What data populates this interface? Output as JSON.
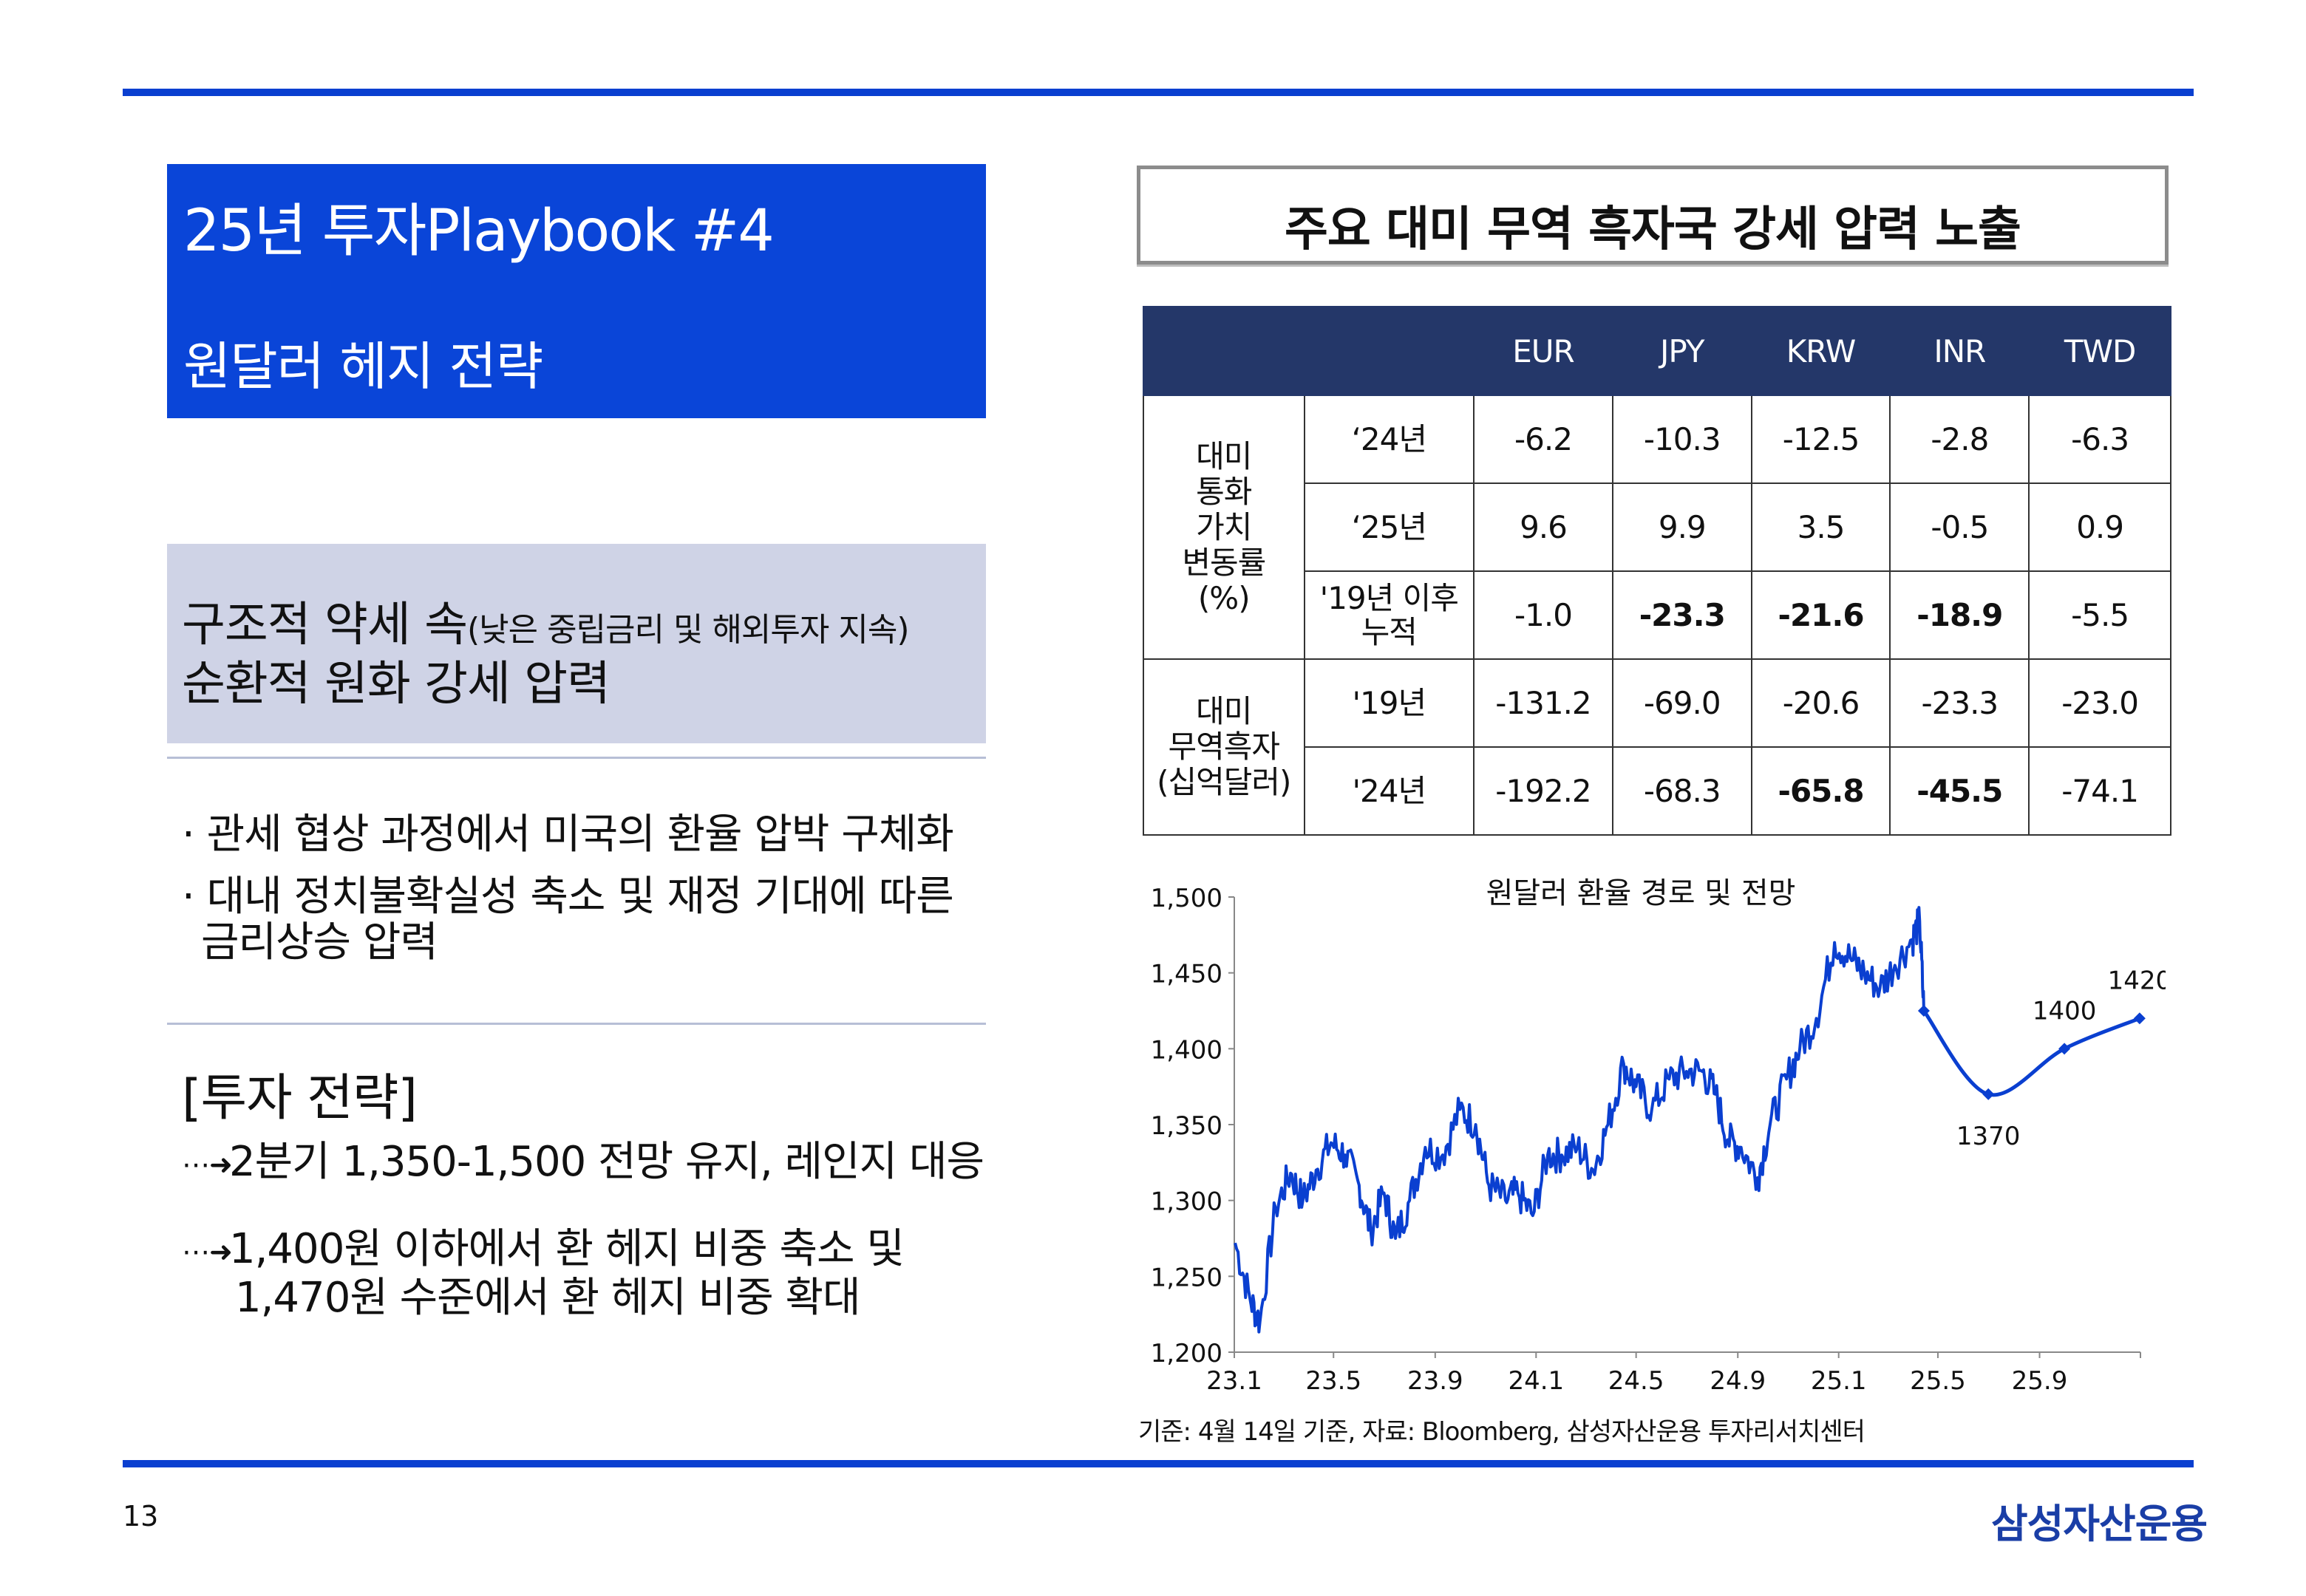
{
  "title": {
    "line1": "25년 투자Playbook #4",
    "line2": "원달러 헤지 전략"
  },
  "theme": {
    "line1_main": "구조적 약세 속",
    "line1_sub": "(낮은 중립금리 및 해외투자 지속)",
    "line2": "순환적 원화 강세 압력"
  },
  "bullets": [
    "· 관세 협상 과정에서 미국의 환율 압박 구체화",
    "· 대내 정치불확실성 축소 및 재정 기대에 따른",
    "금리상승 압력"
  ],
  "strategy": {
    "title": "[투자 전략]",
    "arrow": "⋯➜",
    "items": [
      "2분기 1,350-1,500 전망 유지, 레인지 대응",
      "1,400원 이하에서 환 헤지 비중 축소 및",
      "1,470원 수준에서 환 헤지 비중 확대"
    ]
  },
  "panel_title": "주요 대미 무역 흑자국 강세 압력 노출",
  "table": {
    "columns": [
      "EUR",
      "JPY",
      "KRW",
      "INR",
      "TWD"
    ],
    "group1": "대미\n통화\n가치\n변동률\n(%)",
    "group2": "대미\n무역흑자\n(십억달러)",
    "rows": [
      {
        "label": "‘24년",
        "values": [
          "-6.2",
          "-10.3",
          "-12.5",
          "-2.8",
          "-6.3"
        ]
      },
      {
        "label": "‘25년",
        "values": [
          "9.6",
          "9.9",
          "3.5",
          "-0.5",
          "0.9"
        ]
      },
      {
        "label": "'19년 이후\n누적",
        "values": [
          "-1.0",
          "-23.3",
          "-21.6",
          "-18.9",
          "-5.5"
        ]
      },
      {
        "label": "'19년",
        "values": [
          "-131.2",
          "-69.0",
          "-20.6",
          "-23.3",
          "-23.0"
        ]
      },
      {
        "label": "'24년",
        "values": [
          "-192.2",
          "-68.3",
          "-65.8",
          "-45.5",
          "-74.1"
        ]
      }
    ]
  },
  "chart_data": {
    "type": "line",
    "title": "원달러 환율 경로 및 전망",
    "x_ticks": [
      "23.1",
      "23.5",
      "23.9",
      "24.1",
      "24.5",
      "24.9",
      "25.1",
      "25.5",
      "25.9"
    ],
    "y_ticks": [
      "1,200",
      "1,250",
      "1,300",
      "1,350",
      "1,400",
      "1,450",
      "1,500"
    ],
    "ylim": [
      1200,
      1500
    ],
    "series": [
      {
        "values": [
          [
            "2023-01-02",
            1272
          ],
          [
            "2023-01-20",
            1235
          ],
          [
            "2023-02-01",
            1220
          ],
          [
            "2023-02-20",
            1295
          ],
          [
            "2023-03-10",
            1318
          ],
          [
            "2023-03-25",
            1300
          ],
          [
            "2023-04-10",
            1320
          ],
          [
            "2023-04-28",
            1338
          ],
          [
            "2023-05-15",
            1330
          ],
          [
            "2023-06-01",
            1310
          ],
          [
            "2023-06-15",
            1280
          ],
          [
            "2023-07-01",
            1305
          ],
          [
            "2023-07-15",
            1275
          ],
          [
            "2023-08-01",
            1300
          ],
          [
            "2023-08-20",
            1335
          ],
          [
            "2023-09-10",
            1330
          ],
          [
            "2023-10-01",
            1360
          ],
          [
            "2023-10-20",
            1350
          ],
          [
            "2023-11-05",
            1310
          ],
          [
            "2023-11-25",
            1300
          ],
          [
            "2023-12-10",
            1305
          ],
          [
            "2023-12-28",
            1290
          ],
          [
            "2024-01-15",
            1330
          ],
          [
            "2024-02-01",
            1330
          ],
          [
            "2024-02-20",
            1335
          ],
          [
            "2024-03-10",
            1320
          ],
          [
            "2024-03-28",
            1350
          ],
          [
            "2024-04-16",
            1390
          ],
          [
            "2024-05-01",
            1375
          ],
          [
            "2024-05-20",
            1360
          ],
          [
            "2024-06-10",
            1380
          ],
          [
            "2024-07-01",
            1385
          ],
          [
            "2024-07-20",
            1385
          ],
          [
            "2024-08-05",
            1370
          ],
          [
            "2024-08-20",
            1340
          ],
          [
            "2024-09-05",
            1335
          ],
          [
            "2024-09-25",
            1315
          ],
          [
            "2024-10-10",
            1350
          ],
          [
            "2024-10-30",
            1380
          ],
          [
            "2024-11-15",
            1400
          ],
          [
            "2024-12-05",
            1420
          ],
          [
            "2024-12-27",
            1470
          ],
          [
            "2025-01-15",
            1460
          ],
          [
            "2025-02-01",
            1450
          ],
          [
            "2025-02-20",
            1440
          ],
          [
            "2025-03-10",
            1455
          ],
          [
            "2025-03-31",
            1472
          ],
          [
            "2025-04-09",
            1484
          ],
          [
            "2025-04-14",
            1425
          ]
        ]
      },
      {
        "name": "forecast",
        "values": [
          [
            "2025-04-14",
            1425
          ],
          [
            "2025-07-01",
            1370
          ],
          [
            "2025-10-01",
            1400
          ],
          [
            "2025-12-31",
            1420
          ]
        ],
        "labels": [
          "1370",
          "1400",
          "1420"
        ]
      }
    ]
  },
  "source": "기준: 4월 14일 기준, 자료: Bloomberg, 삼성자산운용 투자리서치센터",
  "page_number": "13",
  "brand": "삼성자산운용",
  "colors": {
    "accent": "#0a45d8",
    "header_fill": "#243769",
    "line": "#0a3fd0",
    "theme_fill": "#cfd3e6"
  }
}
